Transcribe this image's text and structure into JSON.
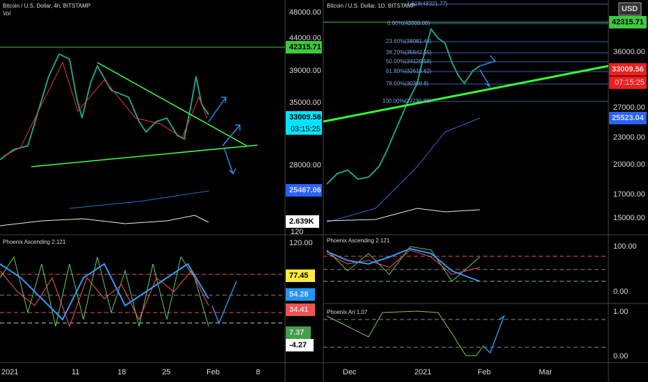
{
  "left": {
    "title": "Bitcoin / U.S. Dollar, 4h, BITSTAMP",
    "vol": "Vol",
    "price_axis": [
      "48000.00",
      "44000.00",
      "39000.00",
      "35000.00",
      "28000.00"
    ],
    "tags": {
      "resistance": "42315.71",
      "price": "33009.56",
      "countdown": "03:15:25",
      "ma": "25467.06",
      "volume": "2.639K",
      "vol_scale": "120"
    },
    "indicator": {
      "name": "Phoenix Ascending 2.121",
      "axis_top": "120.00",
      "tags": [
        "77.45",
        "54.28",
        "34.41",
        "7.37",
        "-4.27"
      ]
    },
    "time_axis": [
      "2021",
      "11",
      "18",
      "25",
      "Feb",
      "8"
    ]
  },
  "right": {
    "title": "Bitcoin / U.S. Dollar, 1D, BITSTAMP",
    "currency": "USD",
    "price_axis": [
      "36000.00",
      "27000.00",
      "23000.00",
      "20000.00",
      "17000.00",
      "15000.00"
    ],
    "tags": {
      "resistance": "42315.71",
      "price": "33009.56",
      "countdown": "07:15:25",
      "ma": "25523.04"
    },
    "fib": [
      "1.618(48321.77)",
      "0.00%(42000.00)",
      "23.60%(38081.44)",
      "38.20%(35642.55)",
      "50.00%(34129.58)",
      "61.80%(32616.62)",
      "78.60%(30309.8)",
      "100.00%(27730.88)"
    ],
    "indicator1": {
      "name": "Phoenix Ascending 2.121",
      "axis": [
        "100.00",
        "0.00"
      ]
    },
    "indicator2": {
      "name": "Phoenix Ari 1.07",
      "axis": [
        "1.00",
        "0.00"
      ]
    },
    "time_axis": [
      "Dec",
      "2021",
      "Feb",
      "Mar"
    ]
  }
}
